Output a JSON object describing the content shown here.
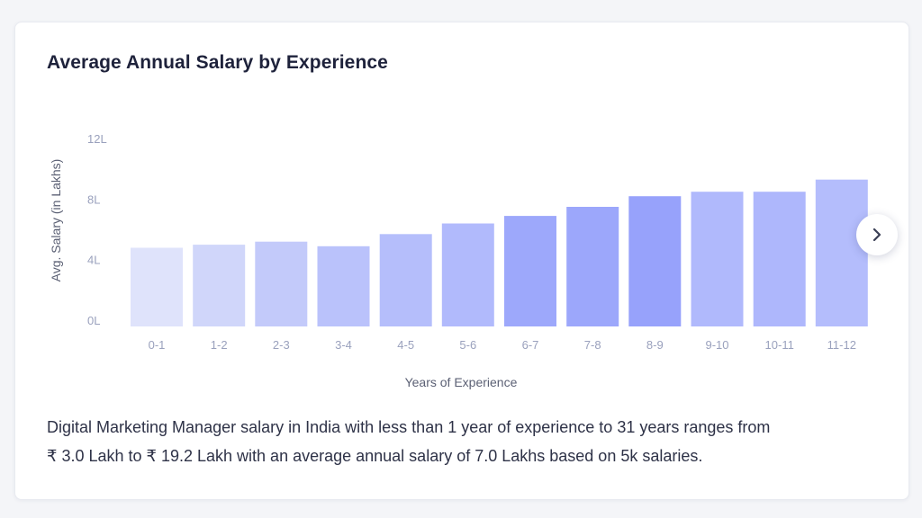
{
  "card": {
    "title": "Average Annual Salary by Experience",
    "next_icon": "chevron-right-icon",
    "description_line1": "Digital Marketing Manager salary in India with less than 1 year of experience to 31 years ranges from",
    "description_line2": "₹ 3.0 Lakh to ₹ 19.2 Lakh with an average annual salary of 7.0 Lakhs based on 5k salaries."
  },
  "chart_data": {
    "type": "bar",
    "title": "Average Annual Salary by Experience",
    "xlabel": "Years of Experience",
    "ylabel": "Avg. Salary (in Lakhs)",
    "categories": [
      "0-1",
      "1-2",
      "2-3",
      "3-4",
      "4-5",
      "5-6",
      "6-7",
      "7-8",
      "8-9",
      "9-10",
      "10-11",
      "11-12"
    ],
    "values": [
      5.2,
      5.4,
      5.6,
      5.3,
      6.1,
      6.8,
      7.3,
      7.9,
      8.6,
      8.9,
      8.9,
      9.7
    ],
    "yticks": [
      {
        "value": 0,
        "label": "0L"
      },
      {
        "value": 4,
        "label": "4L"
      },
      {
        "value": 8,
        "label": "8L"
      },
      {
        "value": 12,
        "label": "12L"
      }
    ],
    "ylim": [
      0,
      12
    ],
    "grid": false,
    "bar_colors": [
      "#dfe3fb",
      "#d0d6fa",
      "#c3cafa",
      "#bac2fb",
      "#b5befb",
      "#b1bafc",
      "#9da8fb",
      "#9ca7fb",
      "#97a2fb",
      "#b0b9fc",
      "#aeb7fc",
      "#b4bdfc"
    ]
  }
}
